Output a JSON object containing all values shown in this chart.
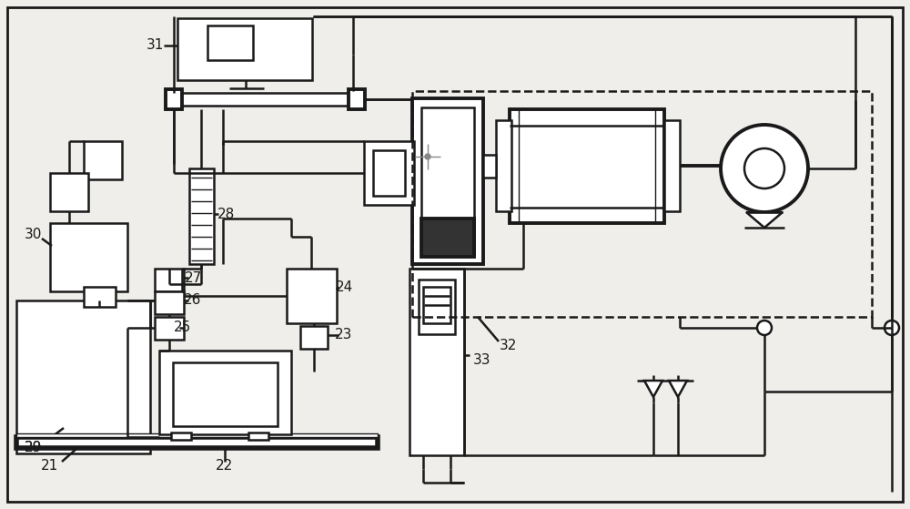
{
  "bg_color": "#f0eeea",
  "line_color": "#1a1a1a",
  "fig_w": 10.0,
  "fig_h": 5.59,
  "lw1": 1.0,
  "lw2": 1.8,
  "lw3": 2.8,
  "lw4": 4.0
}
